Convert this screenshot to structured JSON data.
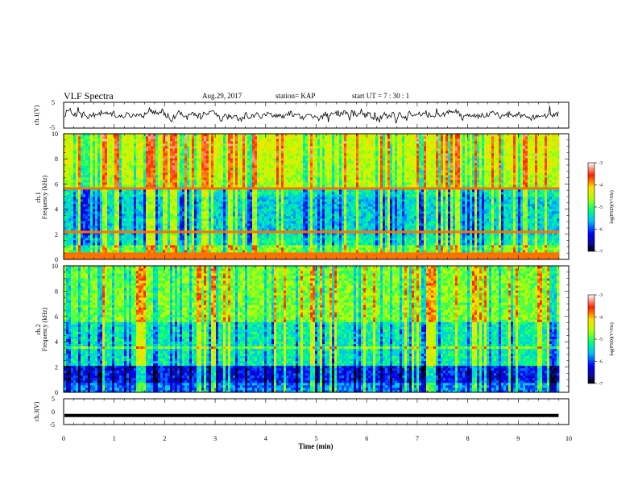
{
  "header": {
    "title": "VLF Spectra",
    "date": "Aug.29, 2017",
    "station": "station= KAP",
    "start": "start  UT  =   7 : 30 : 1"
  },
  "chart_data": [
    {
      "type": "line",
      "ylabel": "ch.1(V)",
      "ylim": [
        -5,
        5
      ],
      "yticks": [
        "5",
        "-5"
      ],
      "xlim": [
        0,
        10
      ],
      "description_values": "noisy waveform around 0 V, spanning 0 to about 9.8 min"
    },
    {
      "type": "heatmap",
      "ylabel_line1": "ch.1",
      "ylabel_line2": "Frequency (kHz)",
      "ylim": [
        0,
        10
      ],
      "yticks": [
        "0",
        "2",
        "4",
        "6",
        "8",
        "10"
      ],
      "xlim": [
        0,
        10
      ],
      "data_end": 9.8,
      "colorbar": {
        "label": "log(PSD)(V²/Hz)",
        "ticks": [
          "-3",
          "-4",
          "-5",
          "-6",
          "-7"
        ],
        "range": [
          -7,
          -3
        ]
      }
    },
    {
      "type": "heatmap",
      "ylabel_line1": "ch.2",
      "ylabel_line2": "Frequency (kHz)",
      "ylim": [
        0,
        10
      ],
      "yticks": [
        "0",
        "2",
        "4",
        "6",
        "8",
        "10"
      ],
      "xlim": [
        0,
        10
      ],
      "data_end": 9.8,
      "colorbar": {
        "label": "log(PSD)(V²/Hz)",
        "ticks": [
          "-3",
          "-4",
          "-5",
          "-6",
          "-7"
        ],
        "range": [
          -7,
          -3
        ]
      }
    },
    {
      "type": "line",
      "ylabel": "ch.3(V)",
      "ylim": [
        -5,
        5
      ],
      "yticks": [
        "5",
        "0",
        "-5"
      ],
      "xlim": [
        0,
        10
      ],
      "x": [
        0,
        9.8
      ],
      "y": [
        -1.5,
        -1.5
      ]
    }
  ],
  "xaxis": {
    "label": "Time (min)",
    "ticks": [
      "0",
      "1",
      "2",
      "3",
      "4",
      "5",
      "6",
      "7",
      "8",
      "9",
      "10"
    ]
  },
  "colors": {
    "line": "#000000",
    "background": "#ffffff"
  }
}
